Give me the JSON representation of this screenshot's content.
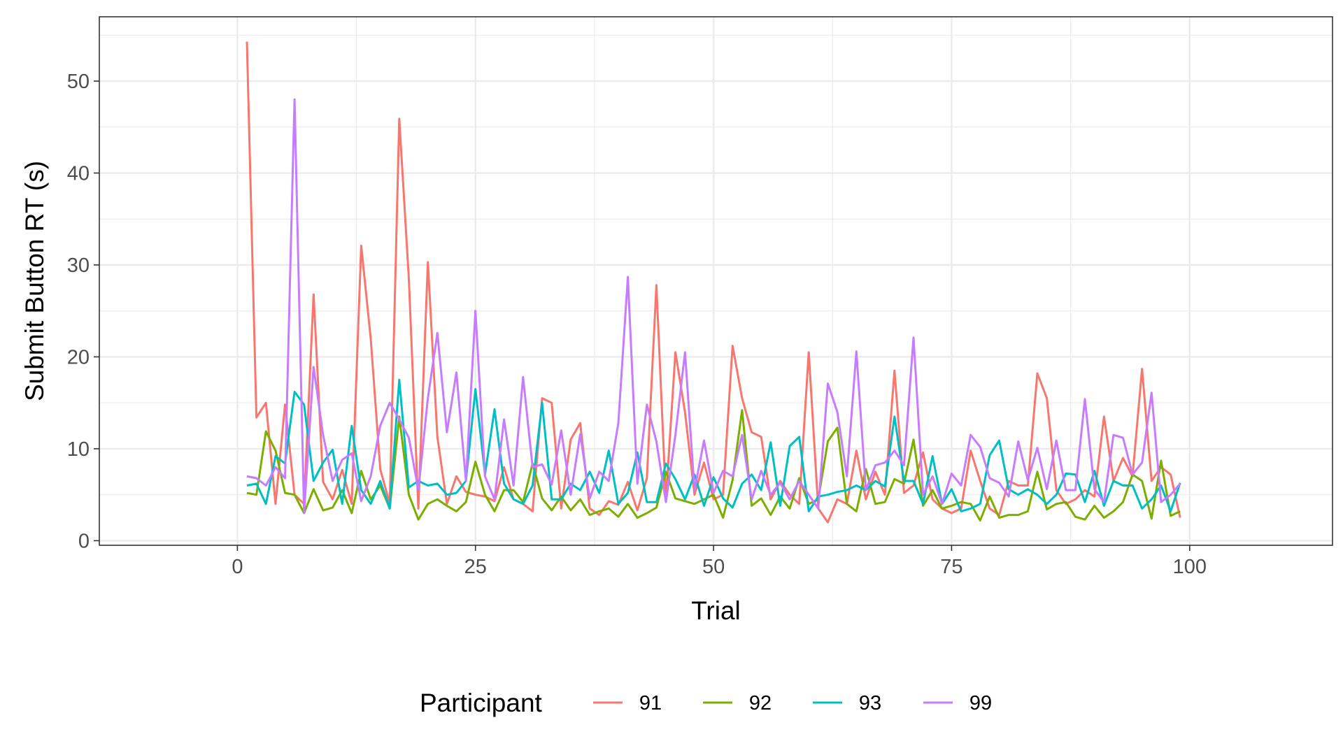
{
  "chart_data": {
    "type": "line",
    "title": "",
    "xlabel": "Trial",
    "ylabel": "Submit Button RT (s)",
    "xlim": [
      -14.5,
      115
    ],
    "ylim": [
      -0.5,
      57
    ],
    "x_ticks": [
      0,
      25,
      50,
      75,
      100
    ],
    "y_ticks": [
      0,
      10,
      20,
      30,
      40,
      50
    ],
    "x_tick_labels": [
      "0",
      "25",
      "50",
      "75",
      "100"
    ],
    "y_tick_labels": [
      "0",
      "10",
      "20",
      "30",
      "40",
      "50"
    ],
    "grid": true,
    "legend_position": "bottom",
    "legend_title": "Participant",
    "series": [
      {
        "name": "91",
        "color": "#F8766D",
        "x": [
          1,
          2,
          3,
          4,
          5,
          6,
          7,
          8,
          9,
          10,
          11,
          12,
          13,
          14,
          15,
          16,
          17,
          18,
          19,
          20,
          21,
          22,
          23,
          24,
          25,
          26,
          27,
          28,
          29,
          30,
          31,
          32,
          33,
          34,
          35,
          36,
          37,
          38,
          39,
          40,
          41,
          42,
          43,
          44,
          45,
          46,
          47,
          48,
          49,
          50,
          51,
          52,
          53,
          54,
          55,
          56,
          57,
          58,
          59,
          60,
          61,
          62,
          63,
          64,
          65,
          66,
          67,
          68,
          69,
          70,
          71,
          72,
          73,
          74,
          75,
          76,
          77,
          78,
          79,
          80,
          81,
          82,
          83,
          84,
          85,
          86,
          87,
          88,
          89,
          90,
          91,
          92,
          93,
          94,
          95,
          96,
          97,
          98,
          99
        ],
        "y": [
          54.3,
          13.4,
          15,
          4,
          14.8,
          5,
          4,
          26.8,
          6.4,
          4.5,
          7.7,
          4,
          32.1,
          22,
          7.8,
          4,
          45.9,
          28.5,
          3.5,
          30.3,
          11.3,
          4,
          7,
          5.3,
          5,
          4.8,
          4.3,
          8,
          4.5,
          4,
          3.2,
          15.5,
          15,
          3.5,
          11,
          12.8,
          3.5,
          2.8,
          4.3,
          3.9,
          6.4,
          3.3,
          6.8,
          27.8,
          4.5,
          20.5,
          14,
          5,
          8.5,
          4.5,
          5,
          21.2,
          15.5,
          11.8,
          11.3,
          4.5,
          6.5,
          5,
          4,
          20.5,
          3.5,
          2,
          4.5,
          4,
          9.8,
          4.5,
          7.5,
          5,
          18.5,
          5.2,
          6,
          9.6,
          4.5,
          3.5,
          3,
          3.5,
          9.8,
          6.5,
          3.5,
          2.8,
          6.5,
          6,
          6,
          18.2,
          15.5,
          5.5,
          4,
          4.5,
          5.5,
          4.8,
          13.5,
          6.5,
          9,
          7,
          18.7,
          6.5,
          8,
          7.2,
          2.5
        ]
      },
      {
        "name": "92",
        "color": "#7CAE00",
        "x": [
          1,
          2,
          3,
          4,
          5,
          6,
          7,
          8,
          9,
          10,
          11,
          12,
          13,
          14,
          15,
          16,
          17,
          18,
          19,
          20,
          21,
          22,
          23,
          24,
          25,
          26,
          27,
          28,
          29,
          30,
          31,
          32,
          33,
          34,
          35,
          36,
          37,
          38,
          39,
          40,
          41,
          42,
          43,
          44,
          45,
          46,
          47,
          48,
          49,
          50,
          51,
          52,
          53,
          54,
          55,
          56,
          57,
          58,
          59,
          60,
          61,
          62,
          63,
          64,
          65,
          66,
          67,
          68,
          69,
          70,
          71,
          72,
          73,
          74,
          75,
          76,
          77,
          78,
          79,
          80,
          81,
          82,
          83,
          84,
          85,
          86,
          87,
          88,
          89,
          90,
          91,
          92,
          93,
          94,
          95,
          96,
          97,
          98,
          99
        ],
        "y": [
          5.2,
          5,
          11.9,
          9.8,
          5.2,
          5,
          3,
          5.6,
          3.3,
          3.6,
          5.5,
          3,
          7.6,
          4.5,
          6,
          3.5,
          13.5,
          5,
          2.3,
          4,
          4.5,
          3.8,
          3.2,
          4.2,
          8.6,
          5,
          3.2,
          5.5,
          5.5,
          4.2,
          8.4,
          4.6,
          3.3,
          4.8,
          3.3,
          4.5,
          2.8,
          3.2,
          3.5,
          2.6,
          4,
          2.5,
          3,
          3.6,
          7.5,
          4.6,
          4.3,
          4,
          4.5,
          5,
          2.5,
          6.6,
          14.2,
          3.8,
          4.6,
          2.8,
          4.8,
          3.5,
          6.8,
          4,
          4.5,
          10.8,
          12.3,
          4,
          3.2,
          7.8,
          4,
          4.2,
          6.7,
          6.2,
          11,
          3.8,
          5.5,
          3.5,
          3.8,
          4.2,
          4,
          2.2,
          4.8,
          2.5,
          2.8,
          2.8,
          3.2,
          7.5,
          3.4,
          4,
          4.2,
          2.6,
          2.3,
          3.8,
          2.5,
          3.2,
          4.2,
          7.2,
          6.5,
          2.4,
          8.7,
          2.7,
          3.2
        ]
      },
      {
        "name": "93",
        "color": "#00BFC4",
        "x": [
          1,
          2,
          3,
          4,
          5,
          6,
          7,
          8,
          9,
          10,
          11,
          12,
          13,
          14,
          15,
          16,
          17,
          18,
          19,
          20,
          21,
          22,
          23,
          24,
          25,
          26,
          27,
          28,
          29,
          30,
          31,
          32,
          33,
          34,
          35,
          36,
          37,
          38,
          39,
          40,
          41,
          42,
          43,
          44,
          45,
          46,
          47,
          48,
          49,
          50,
          51,
          52,
          53,
          54,
          55,
          56,
          57,
          58,
          59,
          60,
          61,
          62,
          63,
          64,
          65,
          66,
          67,
          68,
          69,
          70,
          71,
          72,
          73,
          74,
          75,
          76,
          77,
          78,
          79,
          80,
          81,
          82,
          83,
          84,
          85,
          86,
          87,
          88,
          89,
          90,
          91,
          92,
          93,
          94,
          95,
          96,
          97,
          98,
          99
        ],
        "y": [
          6,
          6.2,
          4,
          9.2,
          8.4,
          16.2,
          14.8,
          6.5,
          8.5,
          9.9,
          4,
          12.5,
          5.5,
          4,
          6.5,
          3.5,
          17.5,
          5.8,
          6.5,
          6,
          6.2,
          5,
          5.2,
          6.5,
          16.5,
          7.2,
          14.3,
          6.2,
          4.5,
          4,
          6,
          15,
          4.5,
          4.5,
          6.2,
          5.5,
          7.5,
          5.2,
          9.8,
          4,
          5.2,
          9.6,
          4.2,
          4.2,
          8.4,
          6.7,
          4.5,
          7.2,
          3.8,
          6.9,
          4.6,
          3.6,
          6.2,
          7.2,
          5.5,
          10.7,
          3.8,
          10.3,
          11.3,
          3.2,
          4.8,
          5,
          5.3,
          5.5,
          6,
          5.5,
          6.5,
          5.9,
          13.5,
          6.5,
          6.5,
          4,
          9.2,
          4,
          5.6,
          3.2,
          3.5,
          4,
          9.3,
          10.9,
          5.6,
          5,
          5.6,
          5,
          4,
          5,
          7.3,
          7.2,
          4.2,
          7.6,
          3.8,
          6.5,
          6,
          6,
          3.5,
          4.5,
          6,
          3.2,
          6.3
        ]
      },
      {
        "name": "99",
        "color": "#C77CFF",
        "x": [
          1,
          2,
          3,
          4,
          5,
          6,
          7,
          8,
          9,
          10,
          11,
          12,
          13,
          14,
          15,
          16,
          17,
          18,
          19,
          20,
          21,
          22,
          23,
          24,
          25,
          26,
          27,
          28,
          29,
          30,
          31,
          32,
          33,
          34,
          35,
          36,
          37,
          38,
          39,
          40,
          41,
          42,
          43,
          44,
          45,
          46,
          47,
          48,
          49,
          50,
          51,
          52,
          53,
          54,
          55,
          56,
          57,
          58,
          59,
          60,
          61,
          62,
          63,
          64,
          65,
          66,
          67,
          68,
          69,
          70,
          71,
          72,
          73,
          74,
          75,
          76,
          77,
          78,
          79,
          80,
          81,
          82,
          83,
          84,
          85,
          86,
          87,
          88,
          89,
          90,
          91,
          92,
          93,
          94,
          95,
          96,
          97,
          98,
          99
        ],
        "y": [
          7,
          6.8,
          6,
          8,
          6.8,
          48,
          3,
          18.9,
          11.5,
          6.5,
          8.8,
          9.5,
          4.3,
          7,
          12.5,
          15,
          13.2,
          11.2,
          5.5,
          15.5,
          22.6,
          11.8,
          18.3,
          6.5,
          25,
          7,
          4.5,
          13.2,
          6,
          17.8,
          8,
          8.3,
          6.1,
          12,
          5,
          11.6,
          4.6,
          7.5,
          6.5,
          12.8,
          28.7,
          6.2,
          14.8,
          10.8,
          4.2,
          11.5,
          20.5,
          5.5,
          10.9,
          5.2,
          7.6,
          7,
          11.5,
          4.5,
          7.6,
          5,
          6.3,
          4.5,
          6.5,
          5,
          3.5,
          17.1,
          14,
          7,
          20.6,
          5.5,
          8.2,
          8.5,
          9.8,
          8.2,
          22.1,
          5,
          7,
          4,
          7.3,
          6,
          11.5,
          10.2,
          6.8,
          6.3,
          4.8,
          10.8,
          6.6,
          10.1,
          5.6,
          10.9,
          5.5,
          5.5,
          15.4,
          5.6,
          4.2,
          11.5,
          11.2,
          7.2,
          8.5,
          16.1,
          4.2,
          5,
          6.2
        ]
      }
    ]
  }
}
